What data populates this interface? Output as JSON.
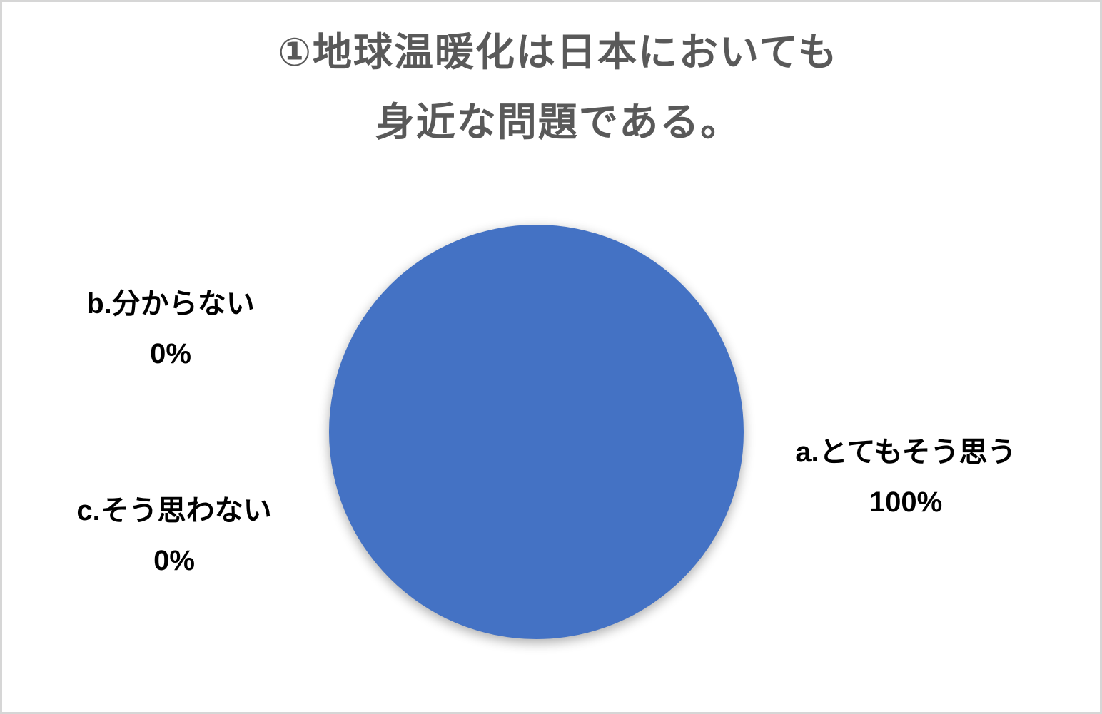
{
  "title": {
    "line1": "①地球温暖化は日本においても",
    "line2": "身近な問題である。",
    "color": "#595959"
  },
  "labels": {
    "a": {
      "name": "a.とてもそう思う",
      "pct": "100%"
    },
    "b": {
      "name": "b.分からない",
      "pct": "0%"
    },
    "c": {
      "name": "c.そう思わない",
      "pct": "0%"
    }
  },
  "frame": {
    "border_color": "#d6d6d6",
    "background": "#ffffff"
  },
  "chart_data": {
    "type": "pie",
    "title": "①地球温暖化は日本においても身近な問題である。",
    "categories": [
      "a.とてもそう思う",
      "b.分からない",
      "c.そう思わない"
    ],
    "values": [
      100,
      0,
      0
    ],
    "unit": "%",
    "colors": [
      "#4472C4",
      "#4472C4",
      "#4472C4"
    ],
    "slice_color": "#4472C4",
    "title_color": "#595959",
    "label_color": "#000000",
    "legend_position": "none",
    "data_labels": "category-name-and-percentage",
    "label_positions": {
      "a.とてもそう思う": "right-outside",
      "b.分からない": "upper-left-outside",
      "c.そう思わない": "lower-left-outside"
    }
  }
}
